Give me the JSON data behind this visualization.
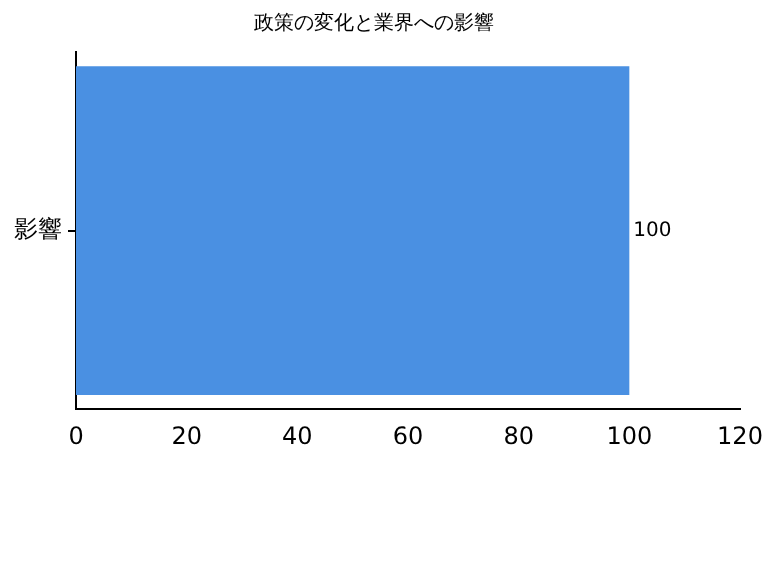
{
  "chart_data": {
    "type": "bar",
    "orientation": "horizontal",
    "title": "政策の変化と業界への影響",
    "categories": [
      "影響"
    ],
    "values": [
      100
    ],
    "color": "#4a90e2",
    "xlim": [
      0,
      120
    ],
    "xticks": [
      0,
      20,
      40,
      60,
      80,
      100,
      120
    ],
    "grid": false,
    "legend": false,
    "data_labels": true
  }
}
